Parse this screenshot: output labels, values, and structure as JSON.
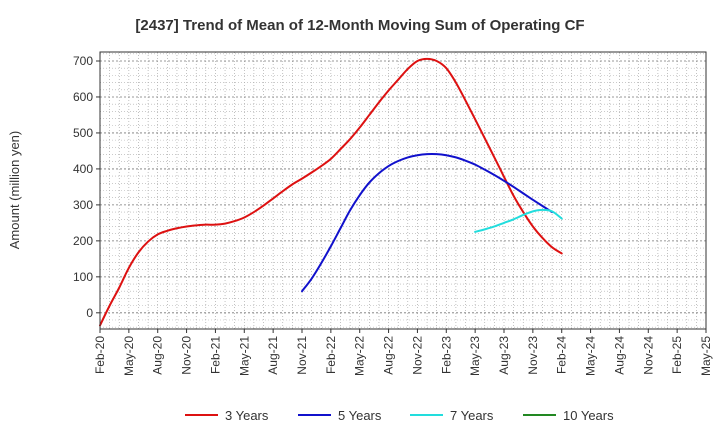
{
  "chart_data": {
    "type": "line",
    "title": "[2437]  Trend of Mean of 12-Month Moving Sum of Operating CF",
    "xlabel": "",
    "ylabel": "Amount (million yen)",
    "ylim": [
      -45,
      725
    ],
    "yticks": [
      0,
      100,
      200,
      300,
      400,
      500,
      600,
      700
    ],
    "grid": true,
    "legend_position": "bottom",
    "x_ticks": [
      "Feb-20",
      "May-20",
      "Aug-20",
      "Nov-20",
      "Feb-21",
      "May-21",
      "Aug-21",
      "Nov-21",
      "Feb-22",
      "May-22",
      "Aug-22",
      "Nov-22",
      "Feb-23",
      "May-23",
      "Aug-23",
      "Nov-23",
      "Feb-24",
      "May-24",
      "Aug-24",
      "Nov-24",
      "Feb-25",
      "May-25"
    ],
    "x_range_months": [
      0,
      63
    ],
    "series": [
      {
        "name": "3 Years",
        "color": "#dd1111",
        "points": [
          [
            0,
            -35
          ],
          [
            1,
            20
          ],
          [
            2,
            70
          ],
          [
            3,
            125
          ],
          [
            4,
            168
          ],
          [
            5,
            198
          ],
          [
            6,
            218
          ],
          [
            7,
            228
          ],
          [
            8,
            235
          ],
          [
            9,
            240
          ],
          [
            10,
            243
          ],
          [
            11,
            245
          ],
          [
            12,
            245
          ],
          [
            13,
            248
          ],
          [
            14,
            255
          ],
          [
            15,
            265
          ],
          [
            16,
            280
          ],
          [
            17,
            298
          ],
          [
            18,
            318
          ],
          [
            19,
            338
          ],
          [
            20,
            357
          ],
          [
            21,
            373
          ],
          [
            22,
            390
          ],
          [
            23,
            408
          ],
          [
            24,
            428
          ],
          [
            25,
            455
          ],
          [
            26,
            483
          ],
          [
            27,
            515
          ],
          [
            28,
            550
          ],
          [
            29,
            585
          ],
          [
            30,
            618
          ],
          [
            31,
            648
          ],
          [
            32,
            678
          ],
          [
            33,
            700
          ],
          [
            34,
            706
          ],
          [
            35,
            700
          ],
          [
            36,
            680
          ],
          [
            37,
            640
          ],
          [
            38,
            590
          ],
          [
            39,
            538
          ],
          [
            40,
            485
          ],
          [
            41,
            432
          ],
          [
            42,
            378
          ],
          [
            43,
            325
          ],
          [
            44,
            280
          ],
          [
            45,
            240
          ],
          [
            46,
            208
          ],
          [
            47,
            182
          ],
          [
            48,
            165
          ]
        ]
      },
      {
        "name": "5 Years",
        "color": "#1111cc",
        "points": [
          [
            21,
            60
          ],
          [
            22,
            95
          ],
          [
            23,
            138
          ],
          [
            24,
            185
          ],
          [
            25,
            235
          ],
          [
            26,
            285
          ],
          [
            27,
            327
          ],
          [
            28,
            362
          ],
          [
            29,
            388
          ],
          [
            30,
            408
          ],
          [
            31,
            422
          ],
          [
            32,
            432
          ],
          [
            33,
            438
          ],
          [
            34,
            441
          ],
          [
            35,
            441
          ],
          [
            36,
            438
          ],
          [
            37,
            432
          ],
          [
            38,
            423
          ],
          [
            39,
            412
          ],
          [
            40,
            398
          ],
          [
            41,
            383
          ],
          [
            42,
            367
          ],
          [
            43,
            350
          ],
          [
            44,
            332
          ],
          [
            45,
            314
          ],
          [
            46,
            297
          ],
          [
            47,
            280
          ]
        ]
      },
      {
        "name": "7 Years",
        "color": "#22dddd",
        "points": [
          [
            39,
            225
          ],
          [
            40,
            232
          ],
          [
            41,
            240
          ],
          [
            42,
            250
          ],
          [
            43,
            260
          ],
          [
            44,
            272
          ],
          [
            45,
            282
          ],
          [
            46,
            286
          ],
          [
            47,
            282
          ],
          [
            48,
            262
          ]
        ]
      },
      {
        "name": "10 Years",
        "color": "#228822",
        "points": []
      }
    ]
  }
}
